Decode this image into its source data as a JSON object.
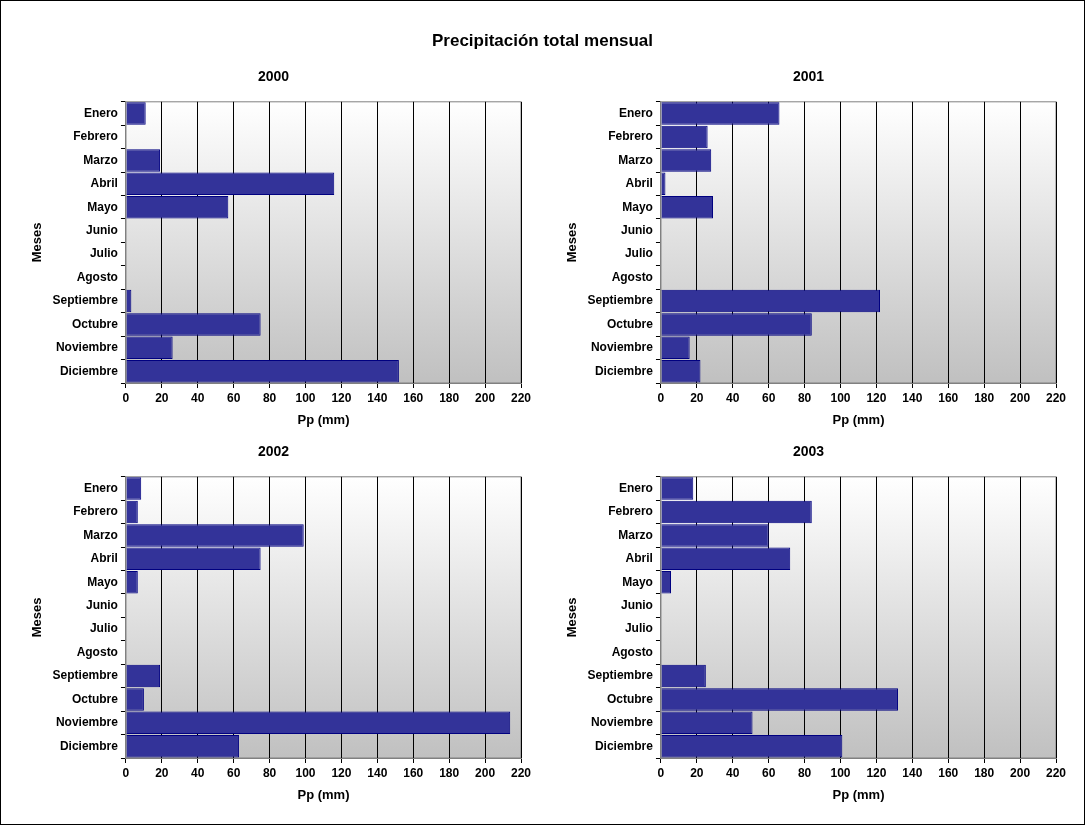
{
  "chart_data": [
    {
      "type": "other",
      "title": "Precipitación total mensual"
    },
    {
      "type": "bar",
      "orientation": "horizontal",
      "title": "2000",
      "xlabel": "Pp (mm)",
      "ylabel": "Meses",
      "categories": [
        "Enero",
        "Febrero",
        "Marzo",
        "Abril",
        "Mayo",
        "Junio",
        "Julio",
        "Agosto",
        "Septiembre",
        "Octubre",
        "Noviembre",
        "Diciembre"
      ],
      "values": [
        11,
        0,
        19,
        116,
        57,
        0,
        0,
        0,
        3,
        75,
        26,
        152
      ],
      "color": "#333399",
      "xlim": [
        0,
        220
      ],
      "xticks": [
        0,
        20,
        40,
        60,
        80,
        100,
        120,
        140,
        160,
        180,
        200,
        220
      ],
      "grid": "x",
      "legend": false
    },
    {
      "type": "bar",
      "orientation": "horizontal",
      "title": "2001",
      "xlabel": "Pp (mm)",
      "ylabel": "Meses",
      "categories": [
        "Enero",
        "Febrero",
        "Marzo",
        "Abril",
        "Mayo",
        "Junio",
        "Julio",
        "Agosto",
        "Septiembre",
        "Octubre",
        "Noviembre",
        "Diciembre"
      ],
      "values": [
        66,
        26,
        28,
        2.5,
        29,
        0,
        0,
        0,
        122,
        84,
        16,
        22
      ],
      "color": "#333399",
      "xlim": [
        0,
        220
      ],
      "xticks": [
        0,
        20,
        40,
        60,
        80,
        100,
        120,
        140,
        160,
        180,
        200,
        220
      ],
      "grid": "x",
      "legend": false
    },
    {
      "type": "bar",
      "orientation": "horizontal",
      "title": "2002",
      "xlabel": "Pp (mm)",
      "ylabel": "Meses",
      "categories": [
        "Enero",
        "Febrero",
        "Marzo",
        "Abril",
        "Mayo",
        "Junio",
        "Julio",
        "Agosto",
        "Septiembre",
        "Octubre",
        "Noviembre",
        "Diciembre"
      ],
      "values": [
        8.5,
        6.6,
        99,
        75,
        6.6,
        0,
        0,
        0,
        19,
        10,
        214,
        63
      ],
      "color": "#333399",
      "xlim": [
        0,
        220
      ],
      "xticks": [
        0,
        20,
        40,
        60,
        80,
        100,
        120,
        140,
        160,
        180,
        200,
        220
      ],
      "grid": "x",
      "legend": false
    },
    {
      "type": "bar",
      "orientation": "horizontal",
      "title": "2003",
      "xlabel": "Pp (mm)",
      "ylabel": "Meses",
      "categories": [
        "Enero",
        "Febrero",
        "Marzo",
        "Abril",
        "Mayo",
        "Junio",
        "Julio",
        "Agosto",
        "Septiembre",
        "Octubre",
        "Noviembre",
        "Diciembre"
      ],
      "values": [
        18,
        84,
        60,
        72,
        5.6,
        0,
        0,
        0,
        25,
        132,
        51,
        101
      ],
      "color": "#333399",
      "xlim": [
        0,
        220
      ],
      "xticks": [
        0,
        20,
        40,
        60,
        80,
        100,
        120,
        140,
        160,
        180,
        200,
        220
      ],
      "grid": "x",
      "legend": false
    }
  ]
}
